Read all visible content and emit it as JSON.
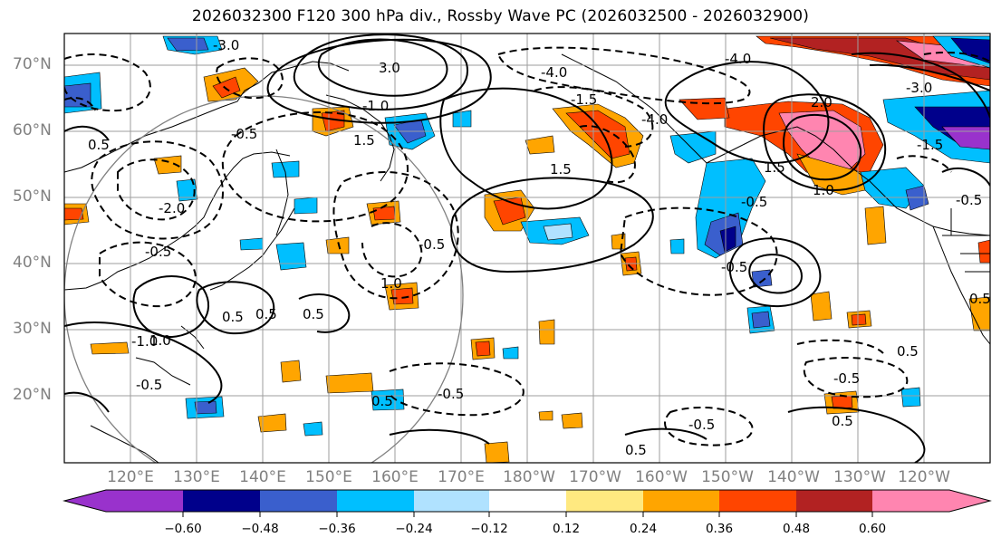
{
  "title": "2026032300 F120 300 hPa div., Rossby Wave PC (2026032500 - 2026032900)",
  "lat_labels": [
    "70°N",
    "60°N",
    "50°N",
    "40°N",
    "30°N",
    "20°N"
  ],
  "lon_labels": [
    "120°E",
    "130°E",
    "140°E",
    "150°E",
    "160°E",
    "170°E",
    "180°W",
    "170°W",
    "160°W",
    "150°W",
    "140°W",
    "130°W",
    "120°W"
  ],
  "contour_labels": [
    "-4.0",
    "-4.0",
    "-4.0",
    "-3.0",
    "-3.0",
    "-2.0",
    "-1.5",
    "-1.5",
    "-1.0",
    "-1.0",
    "-0.5",
    "-0.5",
    "-0.5",
    "-0.5",
    "-0.5",
    "-0.5",
    "-0.5",
    "-0.5",
    "-0.5",
    "-0.5",
    "0.5",
    "0.5",
    "0.5",
    "0.5",
    "0.5",
    "0.5",
    "0.5",
    "0.5",
    "0.5",
    "1.0",
    "1.0",
    "1.0",
    "1.5",
    "1.5",
    "1.5",
    "2.0",
    "3.0"
  ],
  "colorbar": {
    "ticks": [
      "−0.60",
      "−0.48",
      "−0.36",
      "−0.24",
      "−0.12",
      "0.12",
      "0.24",
      "0.36",
      "0.48",
      "0.60"
    ],
    "colors": [
      "#9932cc",
      "#00008b",
      "#3a5fcd",
      "#00bfff",
      "#b0e2ff",
      "#ffffff",
      "#ffe980",
      "#ffa500",
      "#ff4500",
      "#b22222",
      "#ff85b0",
      "#ff85b0"
    ]
  }
}
